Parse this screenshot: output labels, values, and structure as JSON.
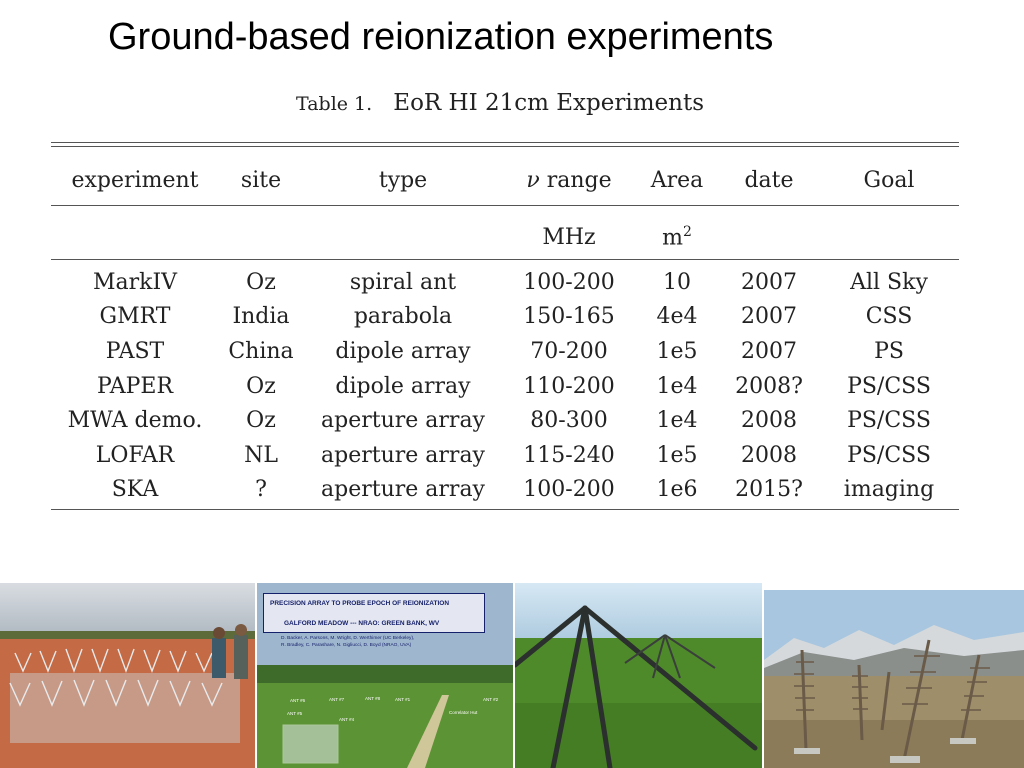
{
  "title": "Ground-based reionization experiments",
  "table": {
    "caption_number": "Table 1.",
    "caption_text": "EoR HI 21cm Experiments",
    "headers": [
      "experiment",
      "site",
      "type",
      "range",
      "Area",
      "date",
      "Goal"
    ],
    "nu_symbol": "ν",
    "units": [
      "",
      "",
      "",
      "MHz",
      "m",
      "",
      ""
    ],
    "units_sup": "2",
    "rows": [
      [
        "MarkIV",
        "Oz",
        "spiral ant",
        "100-200",
        "10",
        "2007",
        "All Sky"
      ],
      [
        "GMRT",
        "India",
        "parabola",
        "150-165",
        "4e4",
        "2007",
        "CSS"
      ],
      [
        "PAST",
        "China",
        "dipole array",
        "70-200",
        "1e5",
        "2007",
        "PS"
      ],
      [
        "PAPER",
        "Oz",
        "dipole array",
        "110-200",
        "1e4",
        "2008?",
        "PS/CSS"
      ],
      [
        "MWA demo.",
        "Oz",
        "aperture array",
        "80-300",
        "1e4",
        "2008",
        "PS/CSS"
      ],
      [
        "LOFAR",
        "NL",
        "aperture array",
        "115-240",
        "1e5",
        "2008",
        "PS/CSS"
      ],
      [
        "SKA",
        "?",
        "aperture array",
        "100-200",
        "1e6",
        "2015?",
        "imaging"
      ]
    ]
  },
  "photos": {
    "paper_sign": {
      "line1": "PRECISION   ARRAY  TO PROBE  EPOCH  OF  REIONIZATION",
      "line2": "GALFORD  MEADOW  ---   NRAO:  GREEN  BANK, WV",
      "credits1": "D. Backer, A. Parsons, M. Wright, D. Werthimer (UC Berkeley),",
      "credits2": "R. Bradley, C. Parashare, N. Gigliucci, D. Boyd (NRAO, UVA)",
      "labels": [
        "ANT #6",
        "ANT #7",
        "ANT #8",
        "ANT #1",
        "ANT #2",
        "ANT #5",
        "ANT #4",
        "Correlator Hut"
      ]
    }
  },
  "colors": {
    "sky": "#b9c3cc",
    "red_soil": "#c46a45",
    "grass": "#4f8a2a",
    "sign_bg": "#e4e7f1",
    "sign_text": "#16216b"
  }
}
